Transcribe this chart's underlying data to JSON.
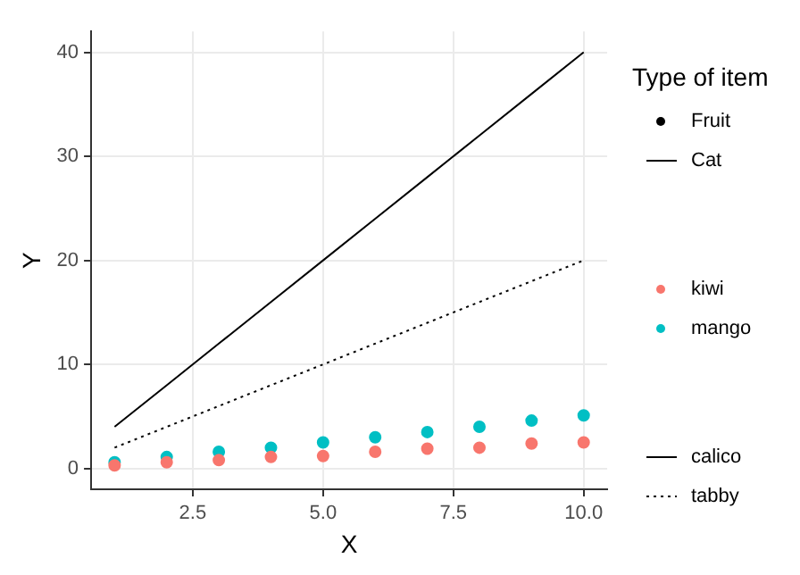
{
  "chart_data": {
    "type": "scatter",
    "xlabel": "X",
    "ylabel": "Y",
    "legend_title": "Type of item",
    "annotations": [
      "Fruit",
      "Cat"
    ],
    "x": [
      1,
      2,
      3,
      4,
      5,
      6,
      7,
      8,
      9,
      10
    ],
    "series": [
      {
        "name": "kiwi",
        "color": "#f8766d",
        "values": [
          0.3,
          0.6,
          0.8,
          1.1,
          1.2,
          1.6,
          1.9,
          2.0,
          2.4,
          2.5
        ]
      },
      {
        "name": "mango",
        "color": "#00bfc4",
        "values": [
          0.6,
          1.1,
          1.6,
          2.0,
          2.5,
          3.0,
          3.5,
          4.0,
          4.6,
          5.1
        ]
      },
      {
        "name": "calico",
        "type": "line",
        "color": "#000000",
        "line_style": "solid",
        "marker": "none",
        "values": [
          4,
          8,
          12,
          16,
          20,
          24,
          28,
          32,
          36,
          40
        ]
      },
      {
        "name": "tabby",
        "type": "line",
        "color": "#000000",
        "line_style": "dotted",
        "marker": "none",
        "values": [
          2,
          4,
          6,
          8,
          10,
          12,
          14,
          16,
          18,
          20
        ]
      }
    ],
    "xlim": [
      0.55,
      10.45
    ],
    "ylim": [
      -2,
      42
    ],
    "xticks": [
      2.5,
      {
        "value": 5,
        "label": "5.0"
      },
      7.5,
      {
        "value": 10,
        "label": "10.0"
      }
    ],
    "yticks": [
      0,
      10,
      20,
      30,
      40
    ],
    "grid": true,
    "legend": "right",
    "marker": "circle"
  }
}
